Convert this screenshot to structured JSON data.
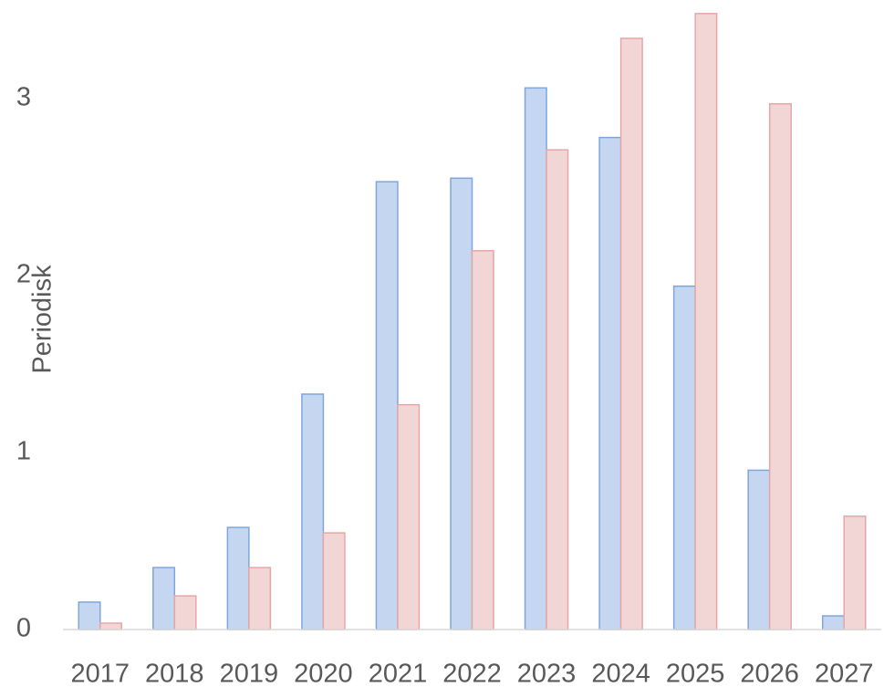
{
  "chart_data": {
    "type": "bar",
    "y_label": "Periodisk",
    "categories": [
      "2017",
      "2018",
      "2019",
      "2020",
      "2021",
      "2022",
      "2023",
      "2024",
      "2025",
      "2026",
      "2027"
    ],
    "series": [
      {
        "color": "#c5d7f0",
        "values": [
          0.155,
          0.35,
          0.577,
          1.33,
          2.53,
          2.55,
          3.06,
          2.78,
          1.94,
          0.9,
          0.077
        ]
      },
      {
        "color": "#f2d6d6",
        "values": [
          0.036,
          0.19,
          0.35,
          0.546,
          1.27,
          2.14,
          2.71,
          3.34,
          3.48,
          2.97,
          0.64
        ]
      }
    ],
    "ylim": [
      0,
      3.5
    ],
    "yticks": [
      0,
      1,
      2,
      3
    ],
    "grid": false
  }
}
